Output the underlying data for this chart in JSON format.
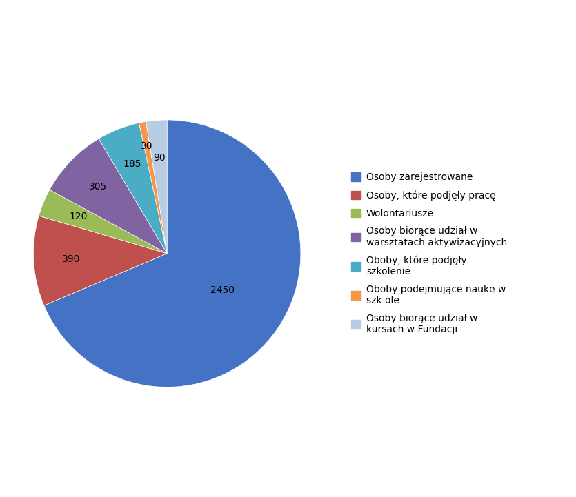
{
  "values": [
    2450,
    390,
    120,
    305,
    185,
    30,
    90
  ],
  "labels": [
    "2450",
    "390",
    "120",
    "305",
    "185",
    "30",
    "90"
  ],
  "colors": [
    "#4472C4",
    "#C0504D",
    "#9BBB59",
    "#8064A2",
    "#4BACC6",
    "#F79646",
    "#B8CCE4"
  ],
  "legend_display": [
    "Osoby zarejestrowane",
    "Osoby, które podjęły pracę",
    "Wolontariusze",
    "Osoby biorące udział w\nwarsztatach aktywizacyjnych",
    "Oboby, które podjęły\nszkolenie",
    "Oboby podejmujące naukę w\nszk ole",
    "Osoby biorące udział w\nkursach w Fundacji"
  ],
  "startangle": 90,
  "background_color": "#FFFFFF",
  "label_fontsize": 10,
  "legend_fontsize": 10
}
